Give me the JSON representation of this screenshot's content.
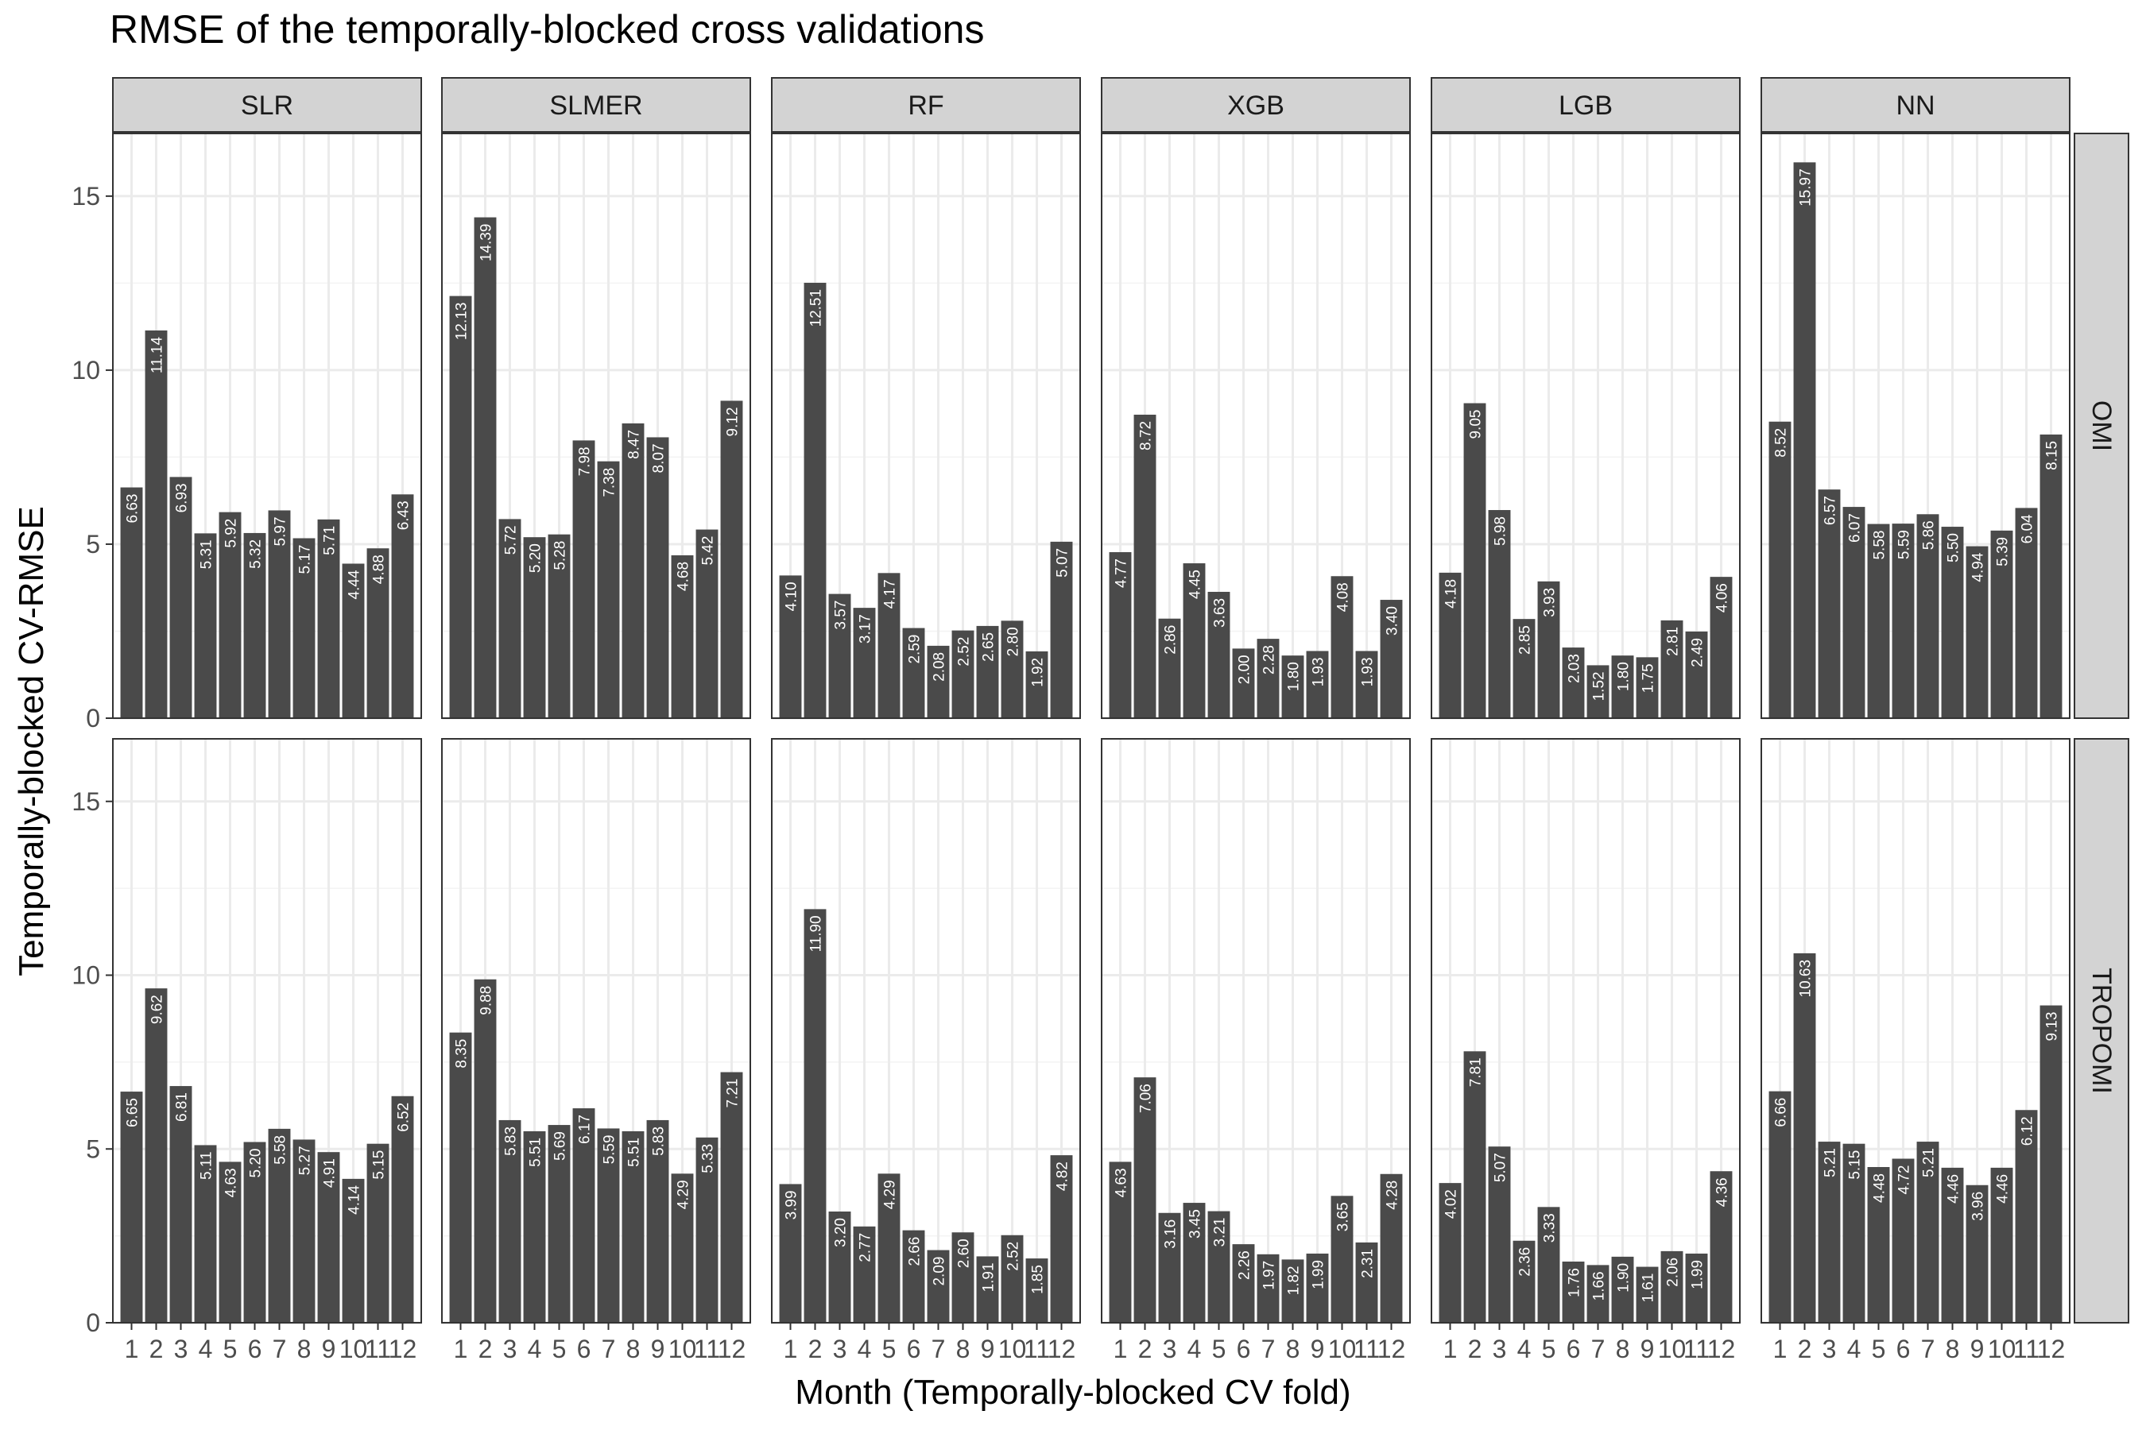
{
  "chart_data": {
    "type": "bar",
    "title": "RMSE of the temporally-blocked cross validations",
    "xlabel": "Month (Temporally-blocked CV fold)",
    "ylabel": "Temporally-blocked CV-RMSE",
    "ylim": [
      0,
      16.8
    ],
    "yticks": [
      0,
      5,
      10,
      15
    ],
    "grid": true,
    "categories": [
      "1",
      "2",
      "3",
      "4",
      "5",
      "6",
      "7",
      "8",
      "9",
      "10",
      "11",
      "12"
    ],
    "column_facets": [
      "SLR",
      "SLMER",
      "RF",
      "XGB",
      "LGB",
      "NN"
    ],
    "row_facets": [
      "OMI",
      "TROPOMI"
    ],
    "panels": [
      {
        "row": "OMI",
        "column": "SLR",
        "values": [
          6.63,
          11.14,
          6.93,
          5.31,
          5.92,
          5.32,
          5.97,
          5.17,
          5.71,
          4.44,
          4.88,
          6.43
        ],
        "labels": [
          "6.63",
          "11.14",
          "6.93",
          "5.31",
          "5.92",
          "5.32",
          "5.97",
          "5.17",
          "5.71",
          "4.44",
          "4.88",
          "6.43"
        ]
      },
      {
        "row": "OMI",
        "column": "SLMER",
        "values": [
          12.13,
          14.39,
          5.72,
          5.2,
          5.28,
          7.98,
          7.38,
          8.47,
          8.07,
          4.68,
          5.42,
          9.12
        ],
        "labels": [
          "12.13",
          "14.39",
          "5.72",
          "5.20",
          "5.28",
          "7.98",
          "7.38",
          "8.47",
          "8.07",
          "4.68",
          "5.42",
          "9.12"
        ]
      },
      {
        "row": "OMI",
        "column": "RF",
        "values": [
          4.1,
          12.51,
          3.57,
          3.17,
          4.17,
          2.59,
          2.08,
          2.52,
          2.65,
          2.8,
          1.92,
          5.07
        ],
        "labels": [
          "4.10",
          "12.51",
          "3.57",
          "3.17",
          "4.17",
          "2.59",
          "2.08",
          "2.52",
          "2.65",
          "2.80",
          "1.92",
          "5.07"
        ]
      },
      {
        "row": "OMI",
        "column": "XGB",
        "values": [
          4.77,
          8.72,
          2.86,
          4.45,
          3.63,
          2.0,
          2.28,
          1.8,
          1.93,
          4.08,
          1.93,
          3.4
        ],
        "labels": [
          "4.77",
          "8.72",
          "2.86",
          "4.45",
          "3.63",
          "2.00",
          "2.28",
          "1.80",
          "1.93",
          "4.08",
          "1.93",
          "3.40"
        ]
      },
      {
        "row": "OMI",
        "column": "LGB",
        "values": [
          4.18,
          9.05,
          5.98,
          2.85,
          3.93,
          2.03,
          1.52,
          1.8,
          1.75,
          2.81,
          2.49,
          4.06
        ],
        "labels": [
          "4.18",
          "9.05",
          "5.98",
          "2.85",
          "3.93",
          "2.03",
          "1.52",
          "1.80",
          "1.75",
          "2.81",
          "2.49",
          "4.06"
        ]
      },
      {
        "row": "OMI",
        "column": "NN",
        "values": [
          8.52,
          15.97,
          6.57,
          6.07,
          5.58,
          5.59,
          5.86,
          5.5,
          4.94,
          5.39,
          6.04,
          8.15
        ],
        "labels": [
          "8.52",
          "15.97",
          "6.57",
          "6.07",
          "5.58",
          "5.59",
          "5.86",
          "5.50",
          "4.94",
          "5.39",
          "6.04",
          "8.15"
        ]
      },
      {
        "row": "TROPOMI",
        "column": "SLR",
        "values": [
          6.65,
          9.62,
          6.81,
          5.11,
          4.63,
          5.2,
          5.58,
          5.27,
          4.91,
          4.14,
          5.15,
          6.52
        ],
        "labels": [
          "6.65",
          "9.62",
          "6.81",
          "5.11",
          "4.63",
          "5.20",
          "5.58",
          "5.27",
          "4.91",
          "4.14",
          "5.15",
          "6.52"
        ]
      },
      {
        "row": "TROPOMI",
        "column": "SLMER",
        "values": [
          8.35,
          9.88,
          5.83,
          5.51,
          5.69,
          6.17,
          5.59,
          5.51,
          5.83,
          4.29,
          5.33,
          7.21
        ],
        "labels": [
          "8.35",
          "9.88",
          "5.83",
          "5.51",
          "5.69",
          "6.17",
          "5.59",
          "5.51",
          "5.83",
          "4.29",
          "5.33",
          "7.21"
        ]
      },
      {
        "row": "TROPOMI",
        "column": "RF",
        "values": [
          3.99,
          11.9,
          3.2,
          2.77,
          4.29,
          2.66,
          2.09,
          2.6,
          1.91,
          2.52,
          1.85,
          4.82
        ],
        "labels": [
          "3.99",
          "11.90",
          "3.20",
          "2.77",
          "4.29",
          "2.66",
          "2.09",
          "2.60",
          "1.91",
          "2.52",
          "1.85",
          "4.82"
        ]
      },
      {
        "row": "TROPOMI",
        "column": "XGB",
        "values": [
          4.63,
          7.06,
          3.16,
          3.45,
          3.21,
          2.26,
          1.97,
          1.82,
          1.99,
          3.65,
          2.31,
          4.28
        ],
        "labels": [
          "4.63",
          "7.06",
          "3.16",
          "3.45",
          "3.21",
          "2.26",
          "1.97",
          "1.82",
          "1.99",
          "3.65",
          "2.31",
          "4.28"
        ]
      },
      {
        "row": "TROPOMI",
        "column": "LGB",
        "values": [
          4.02,
          7.81,
          5.07,
          2.36,
          3.33,
          1.76,
          1.66,
          1.9,
          1.61,
          2.06,
          1.99,
          4.36
        ],
        "labels": [
          "4.02",
          "7.81",
          "5.07",
          "2.36",
          "3.33",
          "1.76",
          "1.66",
          "1.90",
          "1.61",
          "2.06",
          "1.99",
          "4.36"
        ]
      },
      {
        "row": "TROPOMI",
        "column": "NN",
        "values": [
          6.66,
          10.63,
          5.21,
          5.15,
          4.48,
          4.72,
          5.21,
          4.46,
          3.96,
          4.46,
          6.12,
          9.13
        ],
        "labels": [
          "6.66",
          "10.63",
          "5.21",
          "5.15",
          "4.48",
          "4.72",
          "5.21",
          "4.46",
          "3.96",
          "4.46",
          "6.12",
          "9.13"
        ]
      }
    ],
    "colors": {
      "bar": "#4a4a4a",
      "bar_label": "#ffffff",
      "panel_border": "#333333",
      "strip_fill": "#d3d3d3",
      "gridline": "#ebebeb",
      "text": "#000000",
      "tick_text": "#4d4d4d"
    }
  }
}
